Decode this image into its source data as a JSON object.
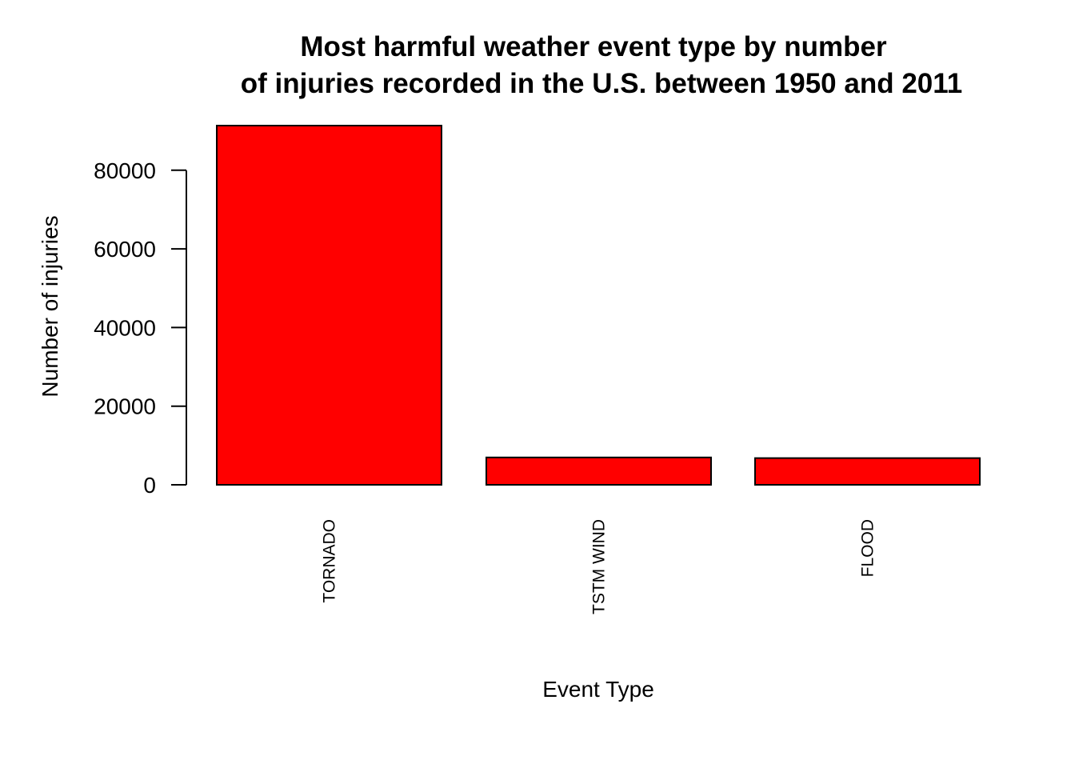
{
  "chart_data": {
    "type": "bar",
    "title_lines": [
      "Most harmful weather event type by number",
      "of injuries recorded in the U.S. between 1950 and 2011"
    ],
    "xlabel": "Event Type",
    "ylabel": "Number of injuries",
    "categories": [
      "TORNADO",
      "TSTM WIND",
      "FLOOD"
    ],
    "values": [
      91346,
      6957,
      6789
    ],
    "yticks": [
      0,
      20000,
      40000,
      60000,
      80000
    ],
    "ytick_labels": [
      "0",
      "20000",
      "40000",
      "60000",
      "80000"
    ],
    "ylim": [
      0,
      91346
    ],
    "grid": false,
    "bar_color": "#ff0000",
    "bar_border_color": "#000000"
  }
}
